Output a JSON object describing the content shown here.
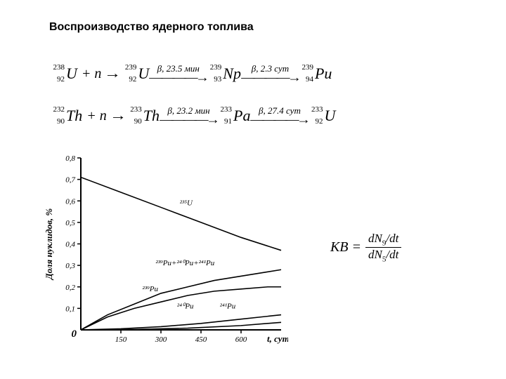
{
  "title": "Воспроизводство ядерного топлива",
  "chain1": {
    "n1": {
      "mass": "238",
      "z": "92",
      "sym": "U"
    },
    "n2": {
      "mass": "239",
      "z": "92",
      "sym": "U"
    },
    "n3": {
      "mass": "239",
      "z": "93",
      "sym": "Np"
    },
    "n4": {
      "mass": "239",
      "z": "94",
      "sym": "Pu"
    },
    "plus_n": "+ n",
    "arrow1_lbl": "β, 23.5 мин",
    "arrow2_lbl": "β, 2.3 сут"
  },
  "chain2": {
    "n1": {
      "mass": "232",
      "z": "90",
      "sym": "Th"
    },
    "n2": {
      "mass": "233",
      "z": "90",
      "sym": "Th"
    },
    "n3": {
      "mass": "233",
      "z": "91",
      "sym": "Pa"
    },
    "n4": {
      "mass": "233",
      "z": "92",
      "sym": "U"
    },
    "plus_n": "+ n",
    "arrow1_lbl": "β, 23.2 мин",
    "arrow2_lbl": "β, 27.4 сут"
  },
  "kv_formula": {
    "lhs": "КВ =",
    "num_prefix": "dN",
    "num_sub": "9",
    "slash_dt": "/dt",
    "den_prefix": "dN",
    "den_sub": "5"
  },
  "chart": {
    "type": "line",
    "xlabel": "t, сут",
    "ylabel": "Доля нуклидов, %",
    "xlim": [
      0,
      750
    ],
    "ylim": [
      0,
      0.8
    ],
    "xticks": [
      0,
      150,
      300,
      450,
      600
    ],
    "yticks": [
      0,
      0.1,
      0.2,
      0.3,
      0.4,
      0.5,
      0.6,
      0.7,
      0.8
    ],
    "ytick_labels": [
      "0",
      "0,1",
      "0,2",
      "0,3",
      "0,4",
      "0,5",
      "0,6",
      "0,7",
      "0,8"
    ],
    "background_color": "#ffffff",
    "axis_color": "#000000",
    "line_width": 1.6,
    "font_size_ticks": 11,
    "font_size_labels": 13,
    "series": [
      {
        "name": "235U",
        "label": "²³⁵U",
        "color": "#000000",
        "x": [
          0,
          150,
          300,
          450,
          600,
          750
        ],
        "y": [
          0.71,
          0.64,
          0.57,
          0.5,
          0.43,
          0.37
        ]
      },
      {
        "name": "PuSum",
        "label": "²³⁹Pu+²⁴⁰Pu+²⁴¹Pu",
        "color": "#000000",
        "x": [
          0,
          100,
          200,
          300,
          400,
          500,
          600,
          700,
          750
        ],
        "y": [
          0.0,
          0.07,
          0.12,
          0.17,
          0.2,
          0.23,
          0.25,
          0.27,
          0.28
        ]
      },
      {
        "name": "239Pu",
        "label": "²³⁹Pu",
        "color": "#000000",
        "x": [
          0,
          100,
          200,
          300,
          400,
          500,
          600,
          700,
          750
        ],
        "y": [
          0.0,
          0.06,
          0.1,
          0.13,
          0.16,
          0.18,
          0.19,
          0.2,
          0.2
        ]
      },
      {
        "name": "240Pu",
        "label": "²⁴⁰Pu",
        "color": "#000000",
        "x": [
          0,
          150,
          300,
          450,
          600,
          750
        ],
        "y": [
          0.0,
          0.005,
          0.015,
          0.03,
          0.05,
          0.07
        ]
      },
      {
        "name": "241Pu",
        "label": "²⁴¹Pu",
        "color": "#000000",
        "x": [
          0,
          200,
          400,
          600,
          750
        ],
        "y": [
          0.0,
          0.002,
          0.008,
          0.02,
          0.035
        ]
      }
    ],
    "series_labels_pos": {
      "235U": {
        "x": 370,
        "y": 0.58
      },
      "PuSum": {
        "x": 280,
        "y": 0.3
      },
      "239Pu": {
        "x": 230,
        "y": 0.18
      },
      "240Pu": {
        "x": 360,
        "y": 0.1
      },
      "241Pu": {
        "x": 520,
        "y": 0.1
      }
    }
  }
}
